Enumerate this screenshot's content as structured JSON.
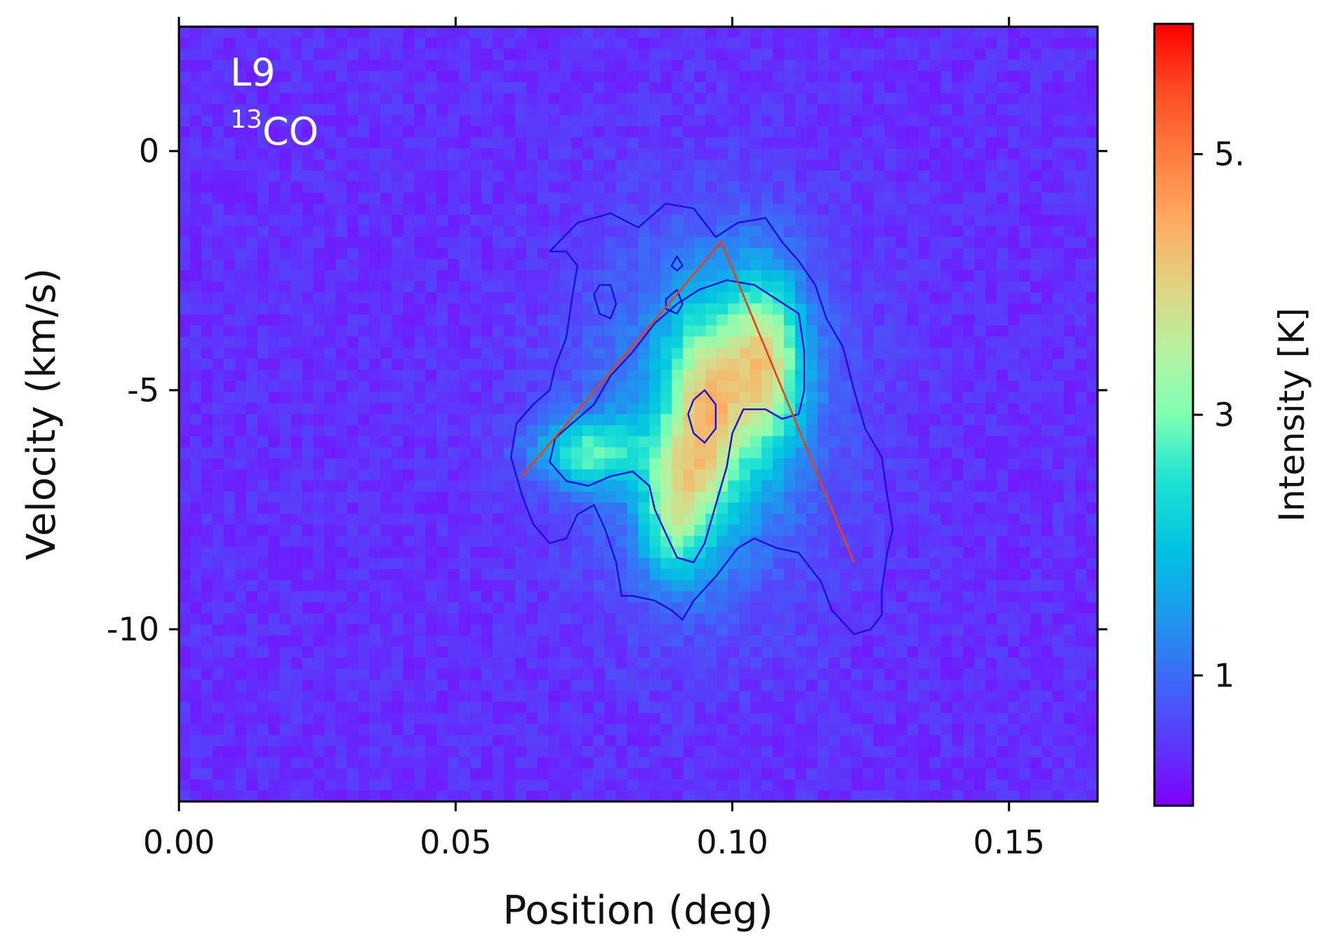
{
  "chart_data": {
    "type": "heatmap",
    "title": "",
    "xlabel": "Position (deg)",
    "ylabel": "Velocity (km/s)",
    "xlim": [
      0.0,
      0.166
    ],
    "ylim": [
      -13.6,
      2.6
    ],
    "x_ticks": [
      {
        "value": 0.0,
        "label": "0.00"
      },
      {
        "value": 0.05,
        "label": "0.05"
      },
      {
        "value": 0.1,
        "label": "0.10"
      },
      {
        "value": 0.15,
        "label": "0.15"
      }
    ],
    "y_ticks": [
      {
        "value": 0,
        "label": "0"
      },
      {
        "value": -5,
        "label": "-5"
      },
      {
        "value": -10,
        "label": "-10"
      }
    ],
    "colorbar": {
      "label": "Intensity [K]",
      "colormap": "rainbow",
      "range": [
        0.0,
        6.0
      ],
      "ticks": [
        {
          "value": 1,
          "label": "1"
        },
        {
          "value": 3,
          "label": "3"
        },
        {
          "value": 5,
          "label": "5."
        }
      ]
    },
    "annotations": {
      "region": "L9",
      "molecule_sup": "13",
      "molecule": "CO"
    },
    "grid": false,
    "colors": {
      "contour": "#1a10d8",
      "fit_line": "#e8401c",
      "annotation_text": "#ffffff"
    },
    "intensity_peaks": [
      {
        "pos": 0.095,
        "vel": -5.6,
        "amp": 2.6,
        "sx": 0.005,
        "sy": 1.6
      },
      {
        "pos": 0.106,
        "vel": -4.4,
        "amp": 2.7,
        "sx": 0.005,
        "sy": 1.3
      },
      {
        "pos": 0.074,
        "vel": -6.3,
        "amp": 2.0,
        "sx": 0.007,
        "sy": 0.5
      },
      {
        "pos": 0.089,
        "vel": -7.6,
        "amp": 1.8,
        "sx": 0.004,
        "sy": 1.0
      },
      {
        "pos": 0.095,
        "vel": -5.5,
        "amp": 1.2,
        "sx": 0.016,
        "sy": 2.6
      }
    ],
    "background_level": 0.4,
    "contours": [
      {
        "name": "outer",
        "points": [
          [
            0.067,
            -2.1
          ],
          [
            0.072,
            -1.5
          ],
          [
            0.078,
            -1.3
          ],
          [
            0.083,
            -1.6
          ],
          [
            0.088,
            -1.1
          ],
          [
            0.093,
            -1.2
          ],
          [
            0.097,
            -1.8
          ],
          [
            0.101,
            -1.5
          ],
          [
            0.106,
            -1.4
          ],
          [
            0.109,
            -1.9
          ],
          [
            0.112,
            -2.3
          ],
          [
            0.115,
            -2.8
          ],
          [
            0.117,
            -3.5
          ],
          [
            0.12,
            -4.1
          ],
          [
            0.122,
            -5.0
          ],
          [
            0.124,
            -5.8
          ],
          [
            0.127,
            -6.4
          ],
          [
            0.128,
            -7.2
          ],
          [
            0.129,
            -7.9
          ],
          [
            0.128,
            -8.4
          ],
          [
            0.127,
            -9.2
          ],
          [
            0.127,
            -9.7
          ],
          [
            0.125,
            -10.0
          ],
          [
            0.122,
            -10.1
          ],
          [
            0.118,
            -9.6
          ],
          [
            0.116,
            -9.0
          ],
          [
            0.112,
            -8.4
          ],
          [
            0.108,
            -8.3
          ],
          [
            0.104,
            -8.1
          ],
          [
            0.101,
            -8.3
          ],
          [
            0.097,
            -8.9
          ],
          [
            0.093,
            -9.4
          ],
          [
            0.091,
            -9.8
          ],
          [
            0.089,
            -9.6
          ],
          [
            0.086,
            -9.4
          ],
          [
            0.082,
            -9.3
          ],
          [
            0.08,
            -9.3
          ],
          [
            0.079,
            -8.6
          ],
          [
            0.077,
            -7.9
          ],
          [
            0.075,
            -7.4
          ],
          [
            0.072,
            -7.6
          ],
          [
            0.07,
            -8.1
          ],
          [
            0.067,
            -8.2
          ],
          [
            0.064,
            -7.8
          ],
          [
            0.062,
            -7.2
          ],
          [
            0.06,
            -6.4
          ],
          [
            0.061,
            -5.7
          ],
          [
            0.064,
            -5.3
          ],
          [
            0.067,
            -5.0
          ],
          [
            0.068,
            -4.5
          ],
          [
            0.07,
            -3.9
          ],
          [
            0.071,
            -3.1
          ],
          [
            0.072,
            -2.4
          ],
          [
            0.07,
            -2.1
          ]
        ]
      },
      {
        "name": "inner",
        "points": [
          [
            0.071,
            -5.7
          ],
          [
            0.075,
            -5.3
          ],
          [
            0.078,
            -4.7
          ],
          [
            0.082,
            -4.2
          ],
          [
            0.086,
            -3.6
          ],
          [
            0.09,
            -3.2
          ],
          [
            0.094,
            -2.9
          ],
          [
            0.099,
            -2.7
          ],
          [
            0.104,
            -2.8
          ],
          [
            0.108,
            -3.1
          ],
          [
            0.112,
            -3.4
          ],
          [
            0.113,
            -4.2
          ],
          [
            0.113,
            -5.0
          ],
          [
            0.112,
            -5.5
          ],
          [
            0.109,
            -5.6
          ],
          [
            0.106,
            -5.4
          ],
          [
            0.102,
            -5.4
          ],
          [
            0.1,
            -5.9
          ],
          [
            0.099,
            -6.6
          ],
          [
            0.097,
            -7.4
          ],
          [
            0.095,
            -8.2
          ],
          [
            0.093,
            -8.6
          ],
          [
            0.09,
            -8.5
          ],
          [
            0.088,
            -8.0
          ],
          [
            0.086,
            -7.5
          ],
          [
            0.085,
            -7.0
          ],
          [
            0.082,
            -6.7
          ],
          [
            0.078,
            -6.8
          ],
          [
            0.074,
            -7.0
          ],
          [
            0.07,
            -6.9
          ],
          [
            0.067,
            -6.5
          ],
          [
            0.068,
            -6.0
          ]
        ]
      },
      {
        "name": "peak",
        "points": [
          [
            0.093,
            -5.2
          ],
          [
            0.095,
            -5.0
          ],
          [
            0.097,
            -5.3
          ],
          [
            0.097,
            -5.8
          ],
          [
            0.095,
            -6.1
          ],
          [
            0.093,
            -5.9
          ],
          [
            0.092,
            -5.5
          ]
        ]
      },
      {
        "name": "blob1",
        "points": [
          [
            0.076,
            -2.8
          ],
          [
            0.078,
            -2.8
          ],
          [
            0.079,
            -3.2
          ],
          [
            0.078,
            -3.5
          ],
          [
            0.076,
            -3.4
          ],
          [
            0.075,
            -3.0
          ]
        ]
      },
      {
        "name": "blob2",
        "points": [
          [
            0.089,
            -2.4
          ],
          [
            0.09,
            -2.2
          ],
          [
            0.091,
            -2.4
          ],
          [
            0.09,
            -2.5
          ]
        ]
      },
      {
        "name": "blob3",
        "points": [
          [
            0.088,
            -3.1
          ],
          [
            0.09,
            -2.9
          ],
          [
            0.091,
            -3.2
          ],
          [
            0.09,
            -3.4
          ],
          [
            0.088,
            -3.3
          ]
        ]
      }
    ],
    "fit_line": [
      [
        0.062,
        -6.8
      ],
      [
        0.098,
        -1.9
      ],
      [
        0.122,
        -8.6
      ]
    ]
  }
}
